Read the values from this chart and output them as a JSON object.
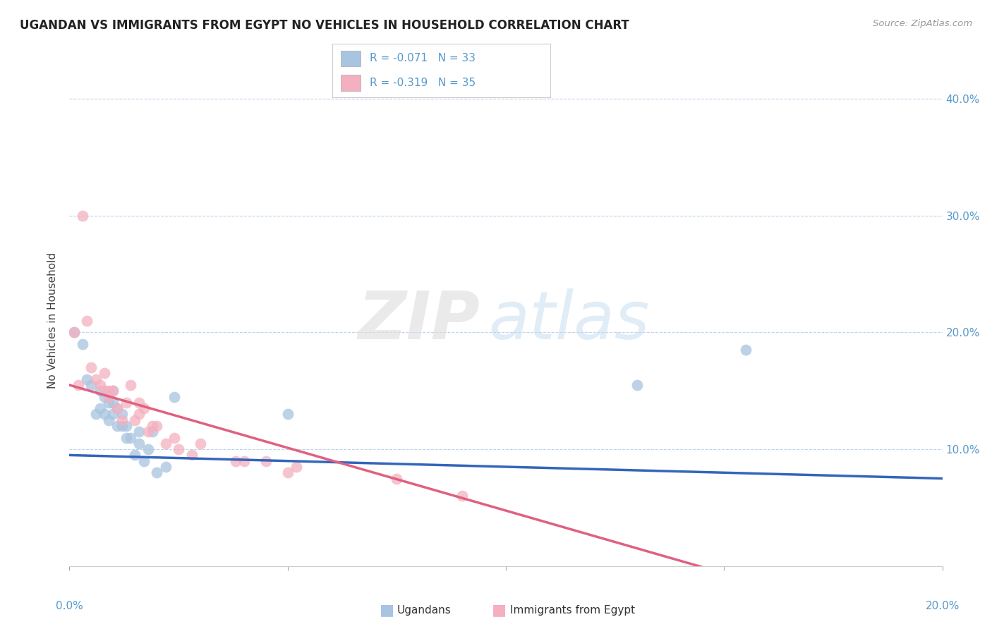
{
  "title": "UGANDAN VS IMMIGRANTS FROM EGYPT NO VEHICLES IN HOUSEHOLD CORRELATION CHART",
  "source": "Source: ZipAtlas.com",
  "ylabel": "No Vehicles in Household",
  "legend_ugandans": "Ugandans",
  "legend_egypt": "Immigrants from Egypt",
  "legend_r1": "R = -0.071",
  "legend_n1": "N = 33",
  "legend_r2": "R = -0.319",
  "legend_n2": "N = 35",
  "ugandan_color": "#a8c4e0",
  "egypt_color": "#f4b0c0",
  "line_ugandan_color": "#3366bb",
  "line_egypt_color": "#e06080",
  "background_color": "#ffffff",
  "watermark_zip": "ZIP",
  "watermark_atlas": "atlas",
  "ugandan_x": [
    0.001,
    0.003,
    0.004,
    0.005,
    0.006,
    0.007,
    0.007,
    0.008,
    0.008,
    0.009,
    0.009,
    0.01,
    0.01,
    0.01,
    0.011,
    0.011,
    0.012,
    0.012,
    0.013,
    0.013,
    0.014,
    0.015,
    0.016,
    0.016,
    0.017,
    0.018,
    0.019,
    0.02,
    0.022,
    0.024,
    0.05,
    0.13,
    0.155
  ],
  "ugandan_y": [
    0.2,
    0.19,
    0.16,
    0.155,
    0.13,
    0.135,
    0.15,
    0.13,
    0.145,
    0.125,
    0.14,
    0.13,
    0.14,
    0.15,
    0.12,
    0.135,
    0.12,
    0.13,
    0.11,
    0.12,
    0.11,
    0.095,
    0.105,
    0.115,
    0.09,
    0.1,
    0.115,
    0.08,
    0.085,
    0.145,
    0.13,
    0.155,
    0.185
  ],
  "egypt_x": [
    0.001,
    0.002,
    0.003,
    0.004,
    0.005,
    0.006,
    0.007,
    0.008,
    0.008,
    0.009,
    0.009,
    0.01,
    0.011,
    0.012,
    0.013,
    0.014,
    0.015,
    0.016,
    0.016,
    0.017,
    0.018,
    0.019,
    0.02,
    0.022,
    0.024,
    0.025,
    0.028,
    0.03,
    0.038,
    0.04,
    0.045,
    0.05,
    0.052,
    0.075,
    0.09
  ],
  "egypt_y": [
    0.2,
    0.155,
    0.3,
    0.21,
    0.17,
    0.16,
    0.155,
    0.15,
    0.165,
    0.15,
    0.145,
    0.15,
    0.135,
    0.125,
    0.14,
    0.155,
    0.125,
    0.13,
    0.14,
    0.135,
    0.115,
    0.12,
    0.12,
    0.105,
    0.11,
    0.1,
    0.095,
    0.105,
    0.09,
    0.09,
    0.09,
    0.08,
    0.085,
    0.075,
    0.06
  ],
  "xlim": [
    0.0,
    0.2
  ],
  "ylim": [
    0.0,
    0.42
  ],
  "ytick_positions": [
    0.0,
    0.1,
    0.2,
    0.3,
    0.4
  ],
  "ytick_labels_right": [
    "",
    "10.0%",
    "20.0%",
    "30.0%",
    "40.0%"
  ]
}
